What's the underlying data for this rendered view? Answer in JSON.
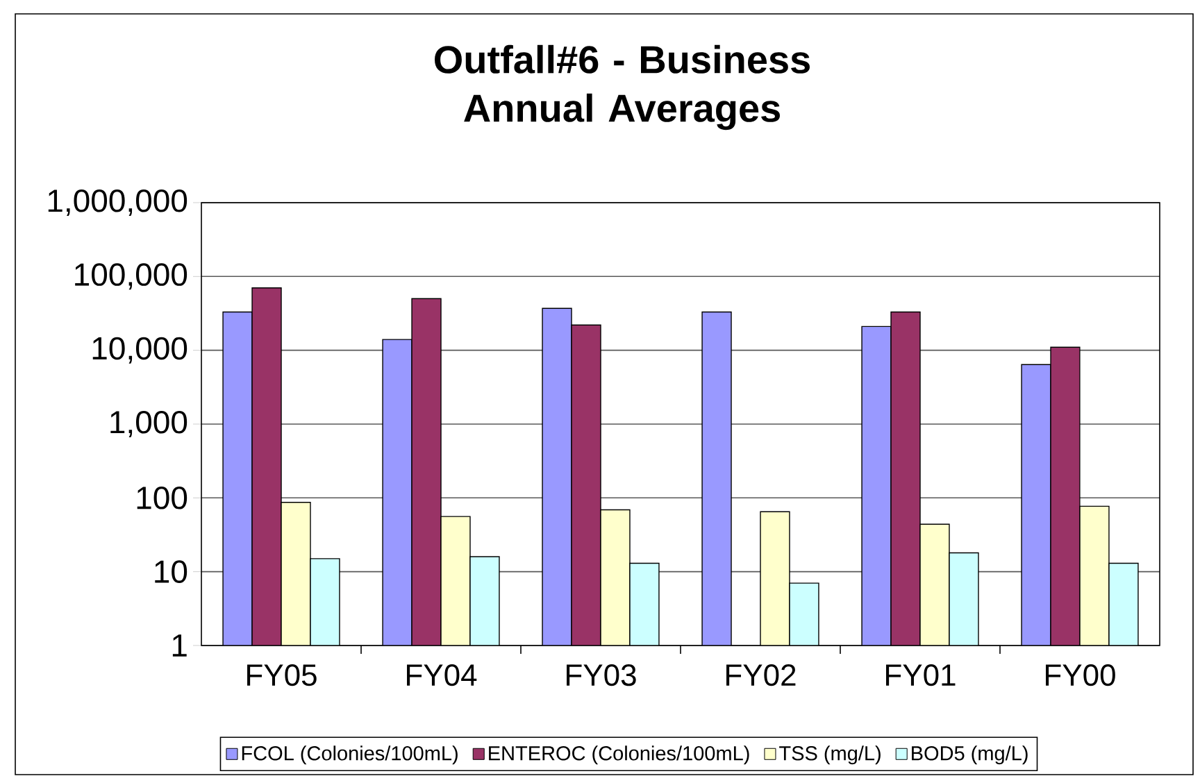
{
  "chart_data": {
    "type": "bar",
    "title": "Outfall#6 - Business Annual Averages",
    "categories": [
      "FY05",
      "FY04",
      "FY03",
      "FY02",
      "FY01",
      "FY00"
    ],
    "series": [
      {
        "name": "FCOL (Colonies/100mL)",
        "color": "#9999ff",
        "values": [
          33000,
          14000,
          37000,
          33000,
          21000,
          6400
        ]
      },
      {
        "name": "ENTEROC (Colonies/100mL)",
        "color": "#993366",
        "values": [
          70000,
          50000,
          22000,
          null,
          33000,
          11000
        ]
      },
      {
        "name": "TSS (mg/L)",
        "color": "#ffffcc",
        "values": [
          87,
          56,
          69,
          65,
          44,
          77
        ]
      },
      {
        "name": "BOD5 (mg/L)",
        "color": "#ccffff",
        "values": [
          15,
          16,
          13,
          7,
          18,
          13
        ]
      }
    ],
    "log": true,
    "ylim": [
      1,
      1000000
    ],
    "yticks": [
      1,
      10,
      100,
      {
        "value": 1000,
        "label": "1,000"
      },
      {
        "value": 10000,
        "label": "10,000"
      },
      {
        "value": 100000,
        "label": "100,000"
      },
      {
        "value": 1000000,
        "label": "1,000,000"
      }
    ],
    "grid": "y",
    "legend": "bottom"
  }
}
